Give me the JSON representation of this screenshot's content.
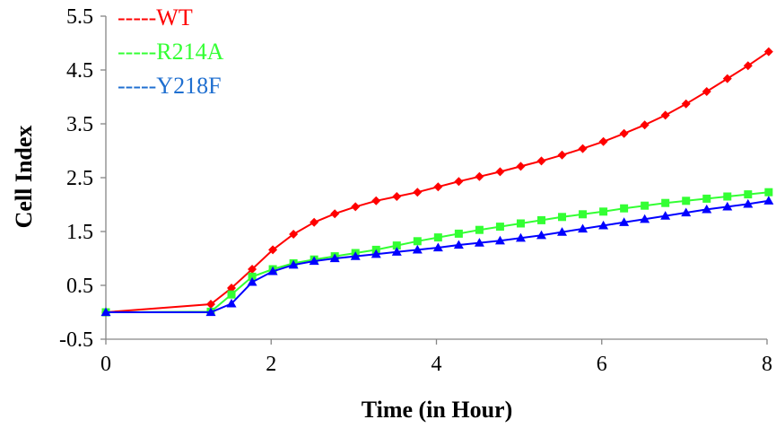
{
  "chart_data": {
    "type": "line",
    "title": "",
    "xlabel": "Time (in Hour)",
    "ylabel": "Cell Index",
    "xlim": [
      0,
      8
    ],
    "ylim": [
      -0.5,
      5.5
    ],
    "xticks": [
      "0",
      "2",
      "4",
      "6",
      "8"
    ],
    "yticks": [
      "-0.5",
      "0.5",
      "1.5",
      "2.5",
      "3.5",
      "4.5",
      "5.5"
    ],
    "grid": false,
    "legend_position": "top-left",
    "x": [
      0,
      1.27,
      1.52,
      1.77,
      2.02,
      2.27,
      2.52,
      2.77,
      3.02,
      3.27,
      3.52,
      3.77,
      4.02,
      4.27,
      4.52,
      4.77,
      5.02,
      5.27,
      5.52,
      5.77,
      6.02,
      6.27,
      6.52,
      6.77,
      7.02,
      7.27,
      7.52,
      7.77,
      8.02
    ],
    "series": [
      {
        "name": "WT",
        "legend_label": "-----WT",
        "color": "#ff0000",
        "marker": "diamond",
        "values": [
          0.0,
          0.15,
          0.45,
          0.8,
          1.16,
          1.45,
          1.67,
          1.83,
          1.96,
          2.07,
          2.15,
          2.23,
          2.33,
          2.43,
          2.52,
          2.61,
          2.71,
          2.81,
          2.92,
          3.04,
          3.17,
          3.32,
          3.48,
          3.66,
          3.87,
          4.1,
          4.34,
          4.58,
          4.84
        ]
      },
      {
        "name": "R214A",
        "legend_label": "-----R214A",
        "color": "#33ff33",
        "marker": "square",
        "values": [
          0.0,
          0.01,
          0.33,
          0.66,
          0.8,
          0.91,
          0.98,
          1.04,
          1.1,
          1.16,
          1.24,
          1.32,
          1.39,
          1.46,
          1.53,
          1.59,
          1.65,
          1.71,
          1.77,
          1.82,
          1.87,
          1.93,
          1.98,
          2.03,
          2.07,
          2.11,
          2.15,
          2.19,
          2.23
        ]
      },
      {
        "name": "Y218F",
        "legend_label": "-----Y218F",
        "color": "#0000ff",
        "legend_color": "#1f6fd0",
        "marker": "triangle",
        "values": [
          0.0,
          0.0,
          0.16,
          0.56,
          0.76,
          0.88,
          0.95,
          1.0,
          1.04,
          1.08,
          1.12,
          1.16,
          1.2,
          1.25,
          1.29,
          1.33,
          1.38,
          1.43,
          1.49,
          1.55,
          1.61,
          1.67,
          1.73,
          1.79,
          1.85,
          1.91,
          1.96,
          2.01,
          2.07
        ]
      }
    ]
  }
}
